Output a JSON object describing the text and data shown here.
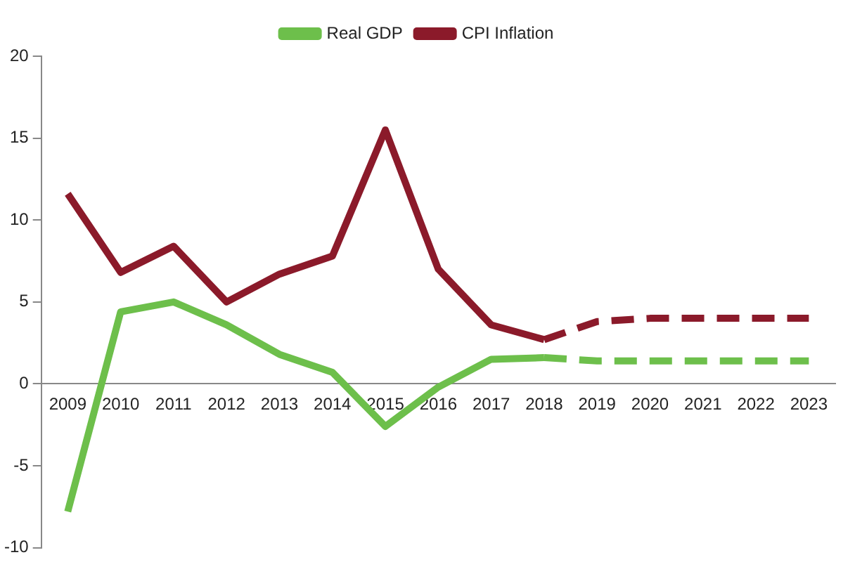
{
  "chart_data": {
    "type": "line",
    "categories": [
      "2009",
      "2010",
      "2011",
      "2012",
      "2013",
      "2014",
      "2015",
      "2016",
      "2017",
      "2018",
      "2019",
      "2020",
      "2021",
      "2022",
      "2023"
    ],
    "series": [
      {
        "name": "Real GDP",
        "color": "#6dbf4b",
        "line_style": "solid",
        "values": [
          -7.8,
          4.4,
          5.0,
          3.6,
          1.8,
          0.7,
          -2.6,
          -0.2,
          1.5,
          1.6,
          null,
          null,
          null,
          null,
          null
        ]
      },
      {
        "name": "CPI Inflation",
        "color": "#8b1a2a",
        "line_style": "solid",
        "values": [
          11.6,
          6.8,
          8.4,
          5.0,
          6.7,
          7.8,
          15.5,
          7.0,
          3.6,
          2.7,
          null,
          null,
          null,
          null,
          null
        ]
      },
      {
        "color": "#6dbf4b",
        "line_style": "dashed",
        "values": [
          null,
          null,
          null,
          null,
          null,
          null,
          null,
          null,
          null,
          1.6,
          1.4,
          1.4,
          1.4,
          1.4,
          1.4
        ]
      },
      {
        "color": "#8b1a2a",
        "line_style": "dashed",
        "values": [
          null,
          null,
          null,
          null,
          null,
          null,
          null,
          null,
          null,
          2.7,
          3.8,
          4.0,
          4.0,
          4.0,
          4.0
        ]
      }
    ],
    "ylim": [
      -10,
      20
    ],
    "yticks": [
      -10,
      -5,
      0,
      5,
      10,
      15,
      20
    ],
    "grid": false,
    "legend": "top",
    "marker": "none"
  }
}
